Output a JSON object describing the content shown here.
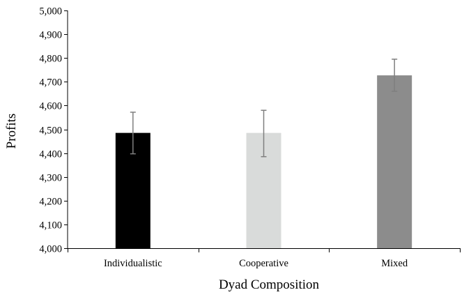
{
  "chart_data": {
    "type": "bar",
    "title": "",
    "xlabel": "Dyad Composition",
    "ylabel": "Profits",
    "categories": [
      "Individualistic",
      "Cooperative",
      "Mixed"
    ],
    "values": [
      4485,
      4485,
      4727
    ],
    "error_low": [
      4397,
      4385,
      4660
    ],
    "error_high": [
      4572,
      4580,
      4795
    ],
    "bar_colors": [
      "#000000",
      "#d9dbda",
      "#8c8c8c"
    ],
    "error_bar_color": "#7f7f7f",
    "ylim": [
      4000,
      5000
    ],
    "yticks": [
      4000,
      4100,
      4200,
      4300,
      4400,
      4500,
      4600,
      4700,
      4800,
      4900,
      5000
    ],
    "ytick_labels": [
      "4,000",
      "4,100",
      "4,200",
      "4,300",
      "4,400",
      "4,500",
      "4,600",
      "4,700",
      "4,800",
      "4,900",
      "5,000"
    ],
    "grid": false,
    "legend": "none"
  }
}
